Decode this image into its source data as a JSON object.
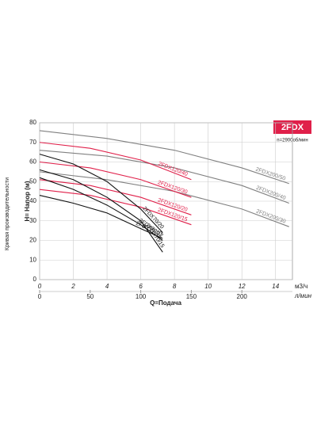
{
  "chart_data": {
    "type": "line",
    "title": "2FDX",
    "subtitle": "n=2900об/мин",
    "xlabel": "Q=Подача",
    "ylabel": "H= Напор (м)",
    "side_label": "Кривая производительности",
    "x_unit": "м3/ч",
    "x2_unit": "л/мин",
    "xlim": [
      0,
      15
    ],
    "xticks": [
      0,
      2,
      4,
      6,
      8,
      10,
      12,
      14
    ],
    "x2lim": [
      0,
      250
    ],
    "x2ticks": [
      0,
      50,
      100,
      150,
      200
    ],
    "ylim": [
      0,
      80
    ],
    "yticks": [
      0,
      10,
      20,
      30,
      40,
      50,
      60,
      70,
      80
    ],
    "grid": true,
    "series": [
      {
        "name": "2FDX200/50",
        "color": "#808080",
        "x": [
          0,
          4,
          8,
          12,
          14.8
        ],
        "values": [
          76,
          72,
          66,
          57,
          49
        ]
      },
      {
        "name": "2FDX200/40",
        "color": "#808080",
        "x": [
          0,
          4,
          8,
          12,
          14.8
        ],
        "values": [
          66,
          63,
          57,
          48,
          39
        ]
      },
      {
        "name": "2FDX200/30",
        "color": "#808080",
        "x": [
          0,
          4,
          8,
          12,
          14.8
        ],
        "values": [
          55,
          51,
          45,
          36,
          27
        ]
      },
      {
        "name": "2FDX120/40",
        "color": "#e0204a",
        "x": [
          0,
          3,
          6,
          9
        ],
        "values": [
          70,
          67,
          61,
          51
        ]
      },
      {
        "name": "2FDX120/30",
        "color": "#e0204a",
        "x": [
          0,
          3,
          6,
          9
        ],
        "values": [
          60,
          57,
          51,
          42
        ]
      },
      {
        "name": "2FDX120/20",
        "color": "#e0204a",
        "x": [
          0,
          3,
          6,
          9
        ],
        "values": [
          51,
          48,
          42,
          33
        ]
      },
      {
        "name": "2FDX120/15",
        "color": "#e0204a",
        "x": [
          0,
          3,
          6,
          9
        ],
        "values": [
          46,
          43,
          37,
          28
        ]
      },
      {
        "name": "2FDX70/20",
        "color": "#111111",
        "x": [
          0,
          2,
          4,
          6,
          7.3
        ],
        "values": [
          64,
          59,
          50,
          36,
          24
        ]
      },
      {
        "name": "2FDX70/15",
        "color": "#111111",
        "x": [
          0,
          2,
          4,
          6,
          7.3
        ],
        "values": [
          56,
          51,
          42,
          30,
          14
        ]
      },
      {
        "name": "2FDX70/12",
        "color": "#111111",
        "x": [
          0,
          2,
          4,
          6,
          7.3
        ],
        "values": [
          52,
          46,
          38,
          28,
          20
        ]
      },
      {
        "name": "2FDX70/10",
        "color": "#111111",
        "x": [
          0,
          2,
          4,
          6,
          7.3
        ],
        "values": [
          43,
          39,
          34,
          26,
          21
        ]
      }
    ]
  }
}
